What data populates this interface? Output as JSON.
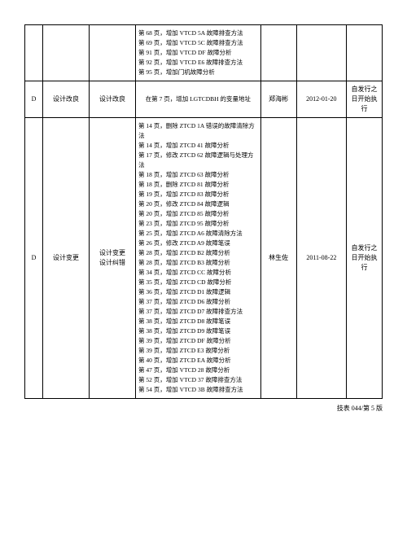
{
  "footer": "技表 044/第 5 版",
  "rows": [
    {
      "code": "",
      "type": "",
      "reason": "",
      "desc": "第 68 页，增加 VTCD 5A 故障排查方法\n第 69 页，增加 VTCD 5C 故障排查方法\n第 91 页，增加 VTCD DF 故障分析\n第 92 页，增加 VTCD E6 故障排查方法\n第 95 页，增加门机故障分析",
      "person": "",
      "date": "",
      "effect": ""
    },
    {
      "code": "D",
      "type": "设计改良",
      "reason": "设计改良",
      "desc": "在第 7 页，增加 LGTCDBH 的变量地址",
      "person": "郑海彬",
      "date": "2012-01-20",
      "effect": "自发行之日开始执行"
    },
    {
      "code": "D",
      "type": "设计变更",
      "reason": "设计变更\n设计纠错",
      "desc": "第 14 页，删除 ZTCD 1A 错误的故障清除方法\n第 14 页，增加 ZTCD 41 故障分析\n第 17 页，修改 ZTCD 62 故障逻辑与处理方法\n第 18 页，增加 ZTCD 63 故障分析\n第 18 页，删除 ZTCD 81 故障分析\n第 19 页，增加 ZTCD 83 故障分析\n第 20 页，修改 ZTCD 84 故障逻辑\n第 20 页，增加 ZTCD 85 故障分析\n第 23 页，增加 ZTCD 95 故障分析\n第 25 页，增加 ZTCD A6 故障清除方法\n第 26 页，修改 ZTCD A9 故障笔误\n第 28 页，增加 ZTCD B2 故障分析\n第 28 页，增加 ZTCD B3 故障分析\n第 34 页，增加 ZTCD CC 故障分析\n第 35 页，增加 ZTCD CD 故障分析\n第 36 页，增加 ZTCD D1 故障逻辑\n第 37 页，增加 ZTCD D6 故障分析\n第 37 页，增加 ZTCD D7 故障排查方法\n第 38 页，增加 ZTCD D8 故障笔误\n第 38 页，增加 ZTCD D9 故障笔误\n第 39 页，增加 ZTCD DF 故障分析\n第 39 页，增加 ZTCD E3 故障分析\n第 40 页，增加 ZTCD EA 故障分析\n第 47 页，增加 VTCD 28 故障分析\n第 52 页，增加 VTCD 37 故障排查方法\n第 54 页，增加 VTCD 3B 故障排查方法",
      "person": "林生佐",
      "date": "2011-08-22",
      "effect": "自发行之日开始执行"
    }
  ]
}
